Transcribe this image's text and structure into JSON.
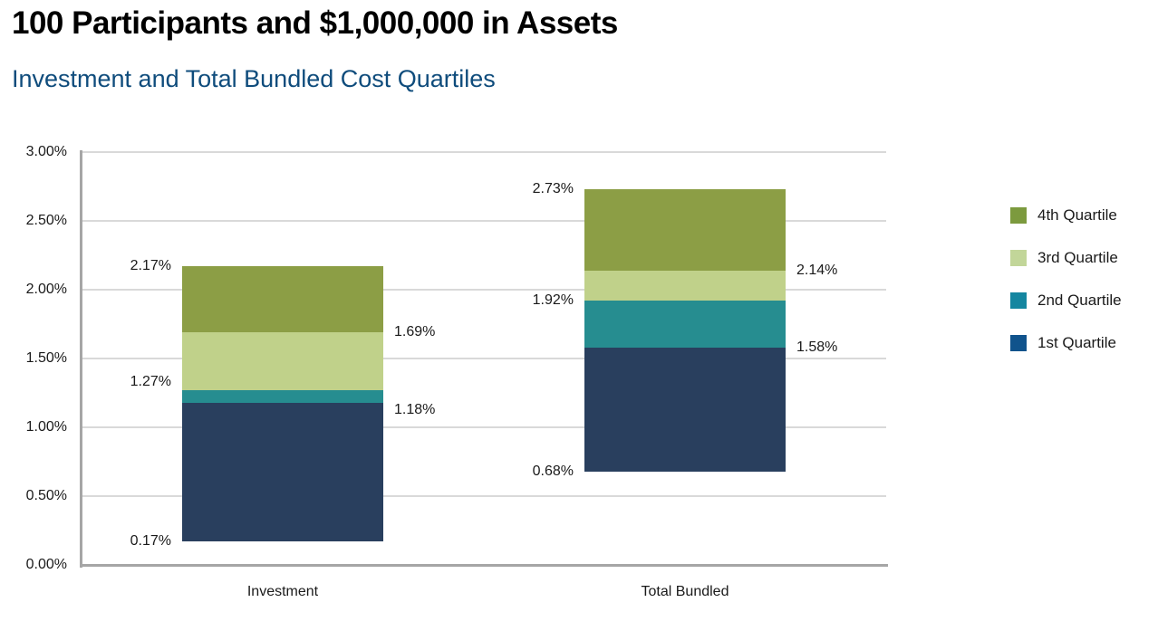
{
  "header": {
    "title_color": "#000000",
    "subtitle_color": "#0f4c7c"
  },
  "chart_data": {
    "type": "bar",
    "subtype": "floating-stacked-quartile-bars",
    "title": "100 Participants and $1,000,000 in Assets",
    "subtitle": "Investment and Total Bundled Cost Quartiles",
    "categories": [
      "Investment",
      "Total Bundled"
    ],
    "xlabel": "",
    "ylabel": "",
    "ylim": [
      0,
      3.0
    ],
    "ytick_step": 0.5,
    "ytick_labels": [
      "0.00%",
      "0.50%",
      "1.00%",
      "1.50%",
      "2.00%",
      "2.50%",
      "3.00%"
    ],
    "grid": true,
    "legend_position": "right",
    "legend": [
      {
        "name": "4th Quartile",
        "color": "#7c9a3e"
      },
      {
        "name": "3rd Quartile",
        "color": "#c2d699"
      },
      {
        "name": "2nd Quartile",
        "color": "#1486a0"
      },
      {
        "name": "1st Quartile",
        "color": "#10538c"
      }
    ],
    "segments": [
      {
        "name": "1st Quartile",
        "from": "low",
        "to": "q1",
        "color": "#293f5e"
      },
      {
        "name": "2nd Quartile",
        "from": "q1",
        "to": "median",
        "color": "#268d90"
      },
      {
        "name": "3rd Quartile",
        "from": "median",
        "to": "q3",
        "color": "#c0d18a"
      },
      {
        "name": "4th Quartile",
        "from": "q3",
        "to": "high",
        "color": "#8c9e45"
      }
    ],
    "bars": [
      {
        "category": "Investment",
        "boundaries": {
          "low": 0.17,
          "q1": 1.18,
          "median": 1.27,
          "q3": 1.69,
          "high": 2.17
        },
        "labels": [
          {
            "value": 0.17,
            "text": "0.17%",
            "side": "left"
          },
          {
            "value": 1.18,
            "text": "1.18%",
            "side": "right"
          },
          {
            "value": 1.27,
            "text": "1.27%",
            "side": "left"
          },
          {
            "value": 1.69,
            "text": "1.69%",
            "side": "right"
          },
          {
            "value": 2.17,
            "text": "2.17%",
            "side": "left"
          }
        ]
      },
      {
        "category": "Total Bundled",
        "boundaries": {
          "low": 0.68,
          "q1": 1.58,
          "median": 1.92,
          "q3": 2.14,
          "high": 2.73
        },
        "labels": [
          {
            "value": 0.68,
            "text": "0.68%",
            "side": "left"
          },
          {
            "value": 1.58,
            "text": "1.58%",
            "side": "right"
          },
          {
            "value": 1.92,
            "text": "1.92%",
            "side": "left"
          },
          {
            "value": 2.14,
            "text": "2.14%",
            "side": "right"
          },
          {
            "value": 2.73,
            "text": "2.73%",
            "side": "left"
          }
        ]
      }
    ],
    "style": {
      "gridline_color": "#d9d9d9",
      "axis_color": "#a6a6a6",
      "text_color": "#1a1a1a"
    }
  }
}
